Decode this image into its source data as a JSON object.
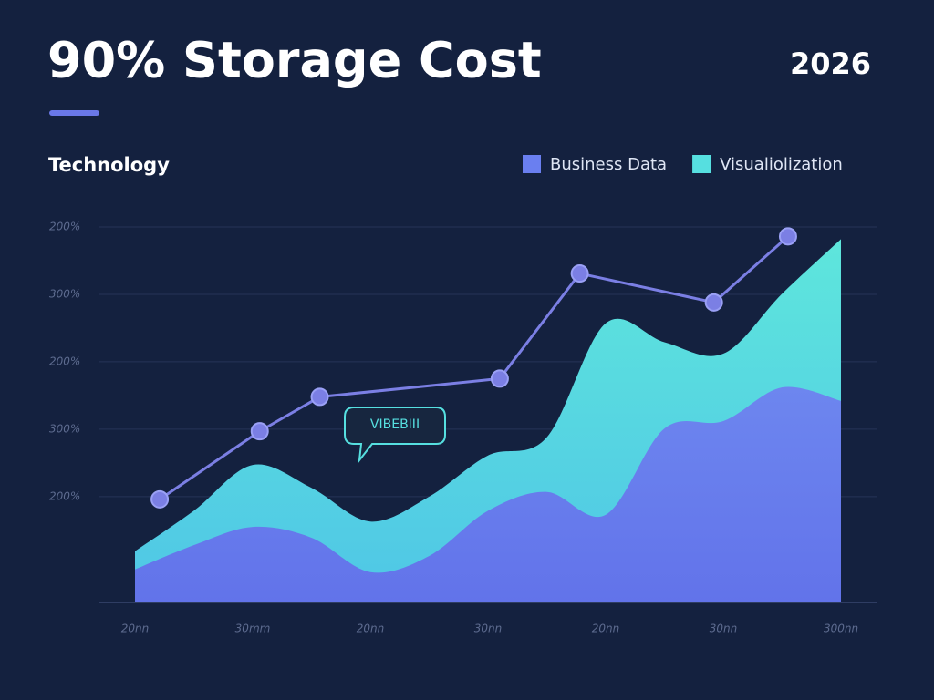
{
  "chart_data": {
    "type": "area",
    "title": "90% Storage Cost",
    "year": "2026",
    "subtitle": "Technology",
    "annotation": "VIBEBIII",
    "xlim": [
      0,
      6
    ],
    "xticks": [
      {
        "value": 0,
        "label": "20nn"
      },
      {
        "value": 1,
        "label": "30mm"
      },
      {
        "value": 2,
        "label": "20nn"
      },
      {
        "value": 3,
        "label": "30nn"
      },
      {
        "value": 4,
        "label": "20nn"
      },
      {
        "value": 5,
        "label": "30nn"
      },
      {
        "value": 6,
        "label": "300nn"
      }
    ],
    "ylim": [
      -0.57,
      5
    ],
    "yticks": [
      {
        "value": 1,
        "label": "200%"
      },
      {
        "value": 2,
        "label": "300%"
      },
      {
        "value": 3,
        "label": "200%"
      },
      {
        "value": 4,
        "label": "300%"
      },
      {
        "value": 5,
        "label": "200%"
      }
    ],
    "grid": true,
    "legend": "top-right",
    "x": [
      0,
      0.5,
      1,
      1.5,
      2,
      2.5,
      3,
      3.5,
      4,
      4.5,
      5,
      5.5,
      6
    ],
    "series": [
      {
        "name": "Visualiolization",
        "color": "#56dfe0",
        "values": [
          0.19,
          0.79,
          1.47,
          1.13,
          0.63,
          1.0,
          1.61,
          1.88,
          3.57,
          3.29,
          3.12,
          4.01,
          4.82
        ]
      },
      {
        "name": "Business Data",
        "color": "#6a7ff0",
        "values": [
          -0.08,
          0.28,
          0.55,
          0.39,
          -0.12,
          0.12,
          0.79,
          1.07,
          0.73,
          2.01,
          2.12,
          2.62,
          2.42
        ]
      }
    ],
    "line": {
      "color": "#7b7fe4",
      "x": [
        0.21,
        1.06,
        1.57,
        3.1,
        3.78,
        4.92,
        5.55
      ],
      "values": [
        0.96,
        1.97,
        2.48,
        2.75,
        4.31,
        3.88,
        4.86
      ]
    }
  }
}
